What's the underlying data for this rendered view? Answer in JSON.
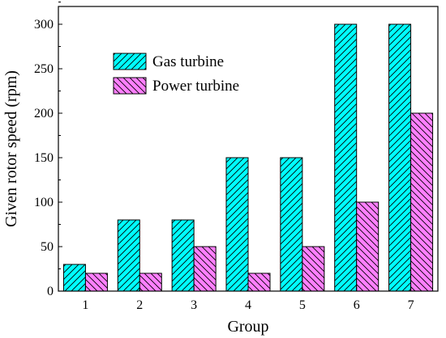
{
  "chart_data": {
    "type": "bar",
    "title": "",
    "xlabel": "Group",
    "ylabel": "Given rotor speed (rpm)",
    "categories": [
      "1",
      "2",
      "3",
      "4",
      "5",
      "6",
      "7"
    ],
    "ylim": [
      0,
      320
    ],
    "yticks": [
      "0",
      "50",
      "100",
      "150",
      "200",
      "250",
      "300"
    ],
    "legend_position": "top-left",
    "grid": false,
    "series": [
      {
        "name": "Gas turbine",
        "color": "#00FFFF",
        "hatch": "diagonal-up",
        "values": [
          30,
          80,
          80,
          150,
          150,
          300,
          300
        ]
      },
      {
        "name": "Power turbine",
        "color": "#FF80FF",
        "hatch": "diagonal-down",
        "values": [
          20,
          20,
          50,
          20,
          50,
          100,
          200
        ]
      }
    ]
  }
}
